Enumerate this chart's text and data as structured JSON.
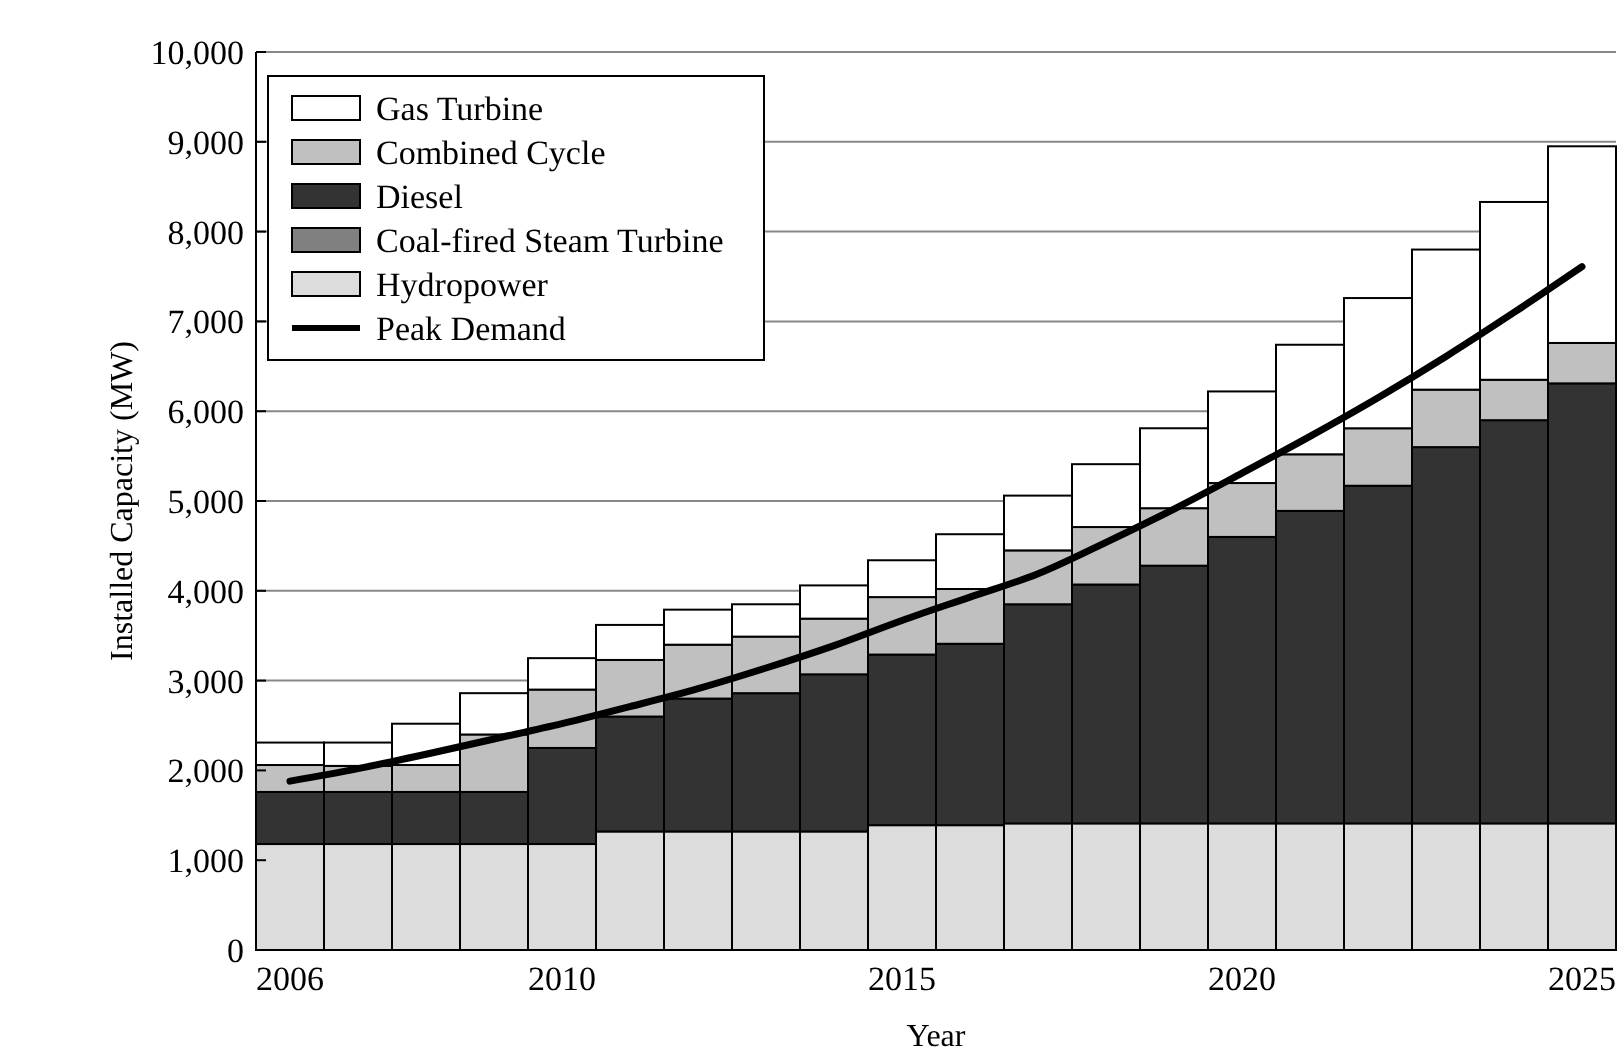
{
  "chart_data": {
    "type": "bar",
    "stacked": true,
    "xlabel": "Year",
    "ylabel": "Installed Capacity (MW)",
    "x": [
      2006,
      2007,
      2008,
      2009,
      2010,
      2011,
      2012,
      2013,
      2014,
      2015,
      2016,
      2017,
      2018,
      2019,
      2020,
      2021,
      2022,
      2023,
      2024,
      2025
    ],
    "xlim": [
      2005.5,
      2025.5
    ],
    "xticks": [
      2006,
      2010,
      2015,
      2020,
      2025
    ],
    "ylim": [
      0,
      10000
    ],
    "yticks": [
      0,
      {
        "value": 1000,
        "label": "1,000"
      },
      {
        "value": 2000,
        "label": "2,000"
      },
      {
        "value": 3000,
        "label": "3,000"
      },
      {
        "value": 4000,
        "label": "4,000"
      },
      {
        "value": 5000,
        "label": "5,000"
      },
      {
        "value": 6000,
        "label": "6,000"
      },
      {
        "value": 7000,
        "label": "7,000"
      },
      {
        "value": 8000,
        "label": "8,000"
      },
      {
        "value": 9000,
        "label": "9,000"
      },
      {
        "value": 10000,
        "label": "10,000"
      }
    ],
    "grid": "y",
    "legend": "top left",
    "series": [
      {
        "name": "Hydropower",
        "color": "#dcdcdc",
        "values": [
          1180,
          1180,
          1180,
          1180,
          1180,
          1320,
          1320,
          1320,
          1320,
          1390,
          1390,
          1410,
          1410,
          1410,
          1410,
          1410,
          1410,
          1410,
          1410,
          1410
        ]
      },
      {
        "name": "Coal-fired Steam Turbine",
        "color": "#808080",
        "values": [
          0,
          0,
          0,
          0,
          0,
          0,
          0,
          0,
          0,
          0,
          0,
          0,
          0,
          0,
          0,
          0,
          0,
          0,
          0,
          0
        ]
      },
      {
        "name": "Diesel",
        "color": "#333333",
        "values": [
          580,
          580,
          580,
          580,
          1070,
          1280,
          1480,
          1540,
          1750,
          1900,
          2020,
          2440,
          2660,
          2870,
          3190,
          3480,
          3760,
          4190,
          4490,
          4900
        ]
      },
      {
        "name": "Combined Cycle",
        "color": "#c0c0c0",
        "values": [
          300,
          290,
          300,
          640,
          650,
          630,
          600,
          630,
          620,
          640,
          610,
          600,
          640,
          640,
          600,
          630,
          640,
          640,
          450,
          450
        ]
      },
      {
        "name": "Gas Turbine",
        "color": "#ffffff",
        "values": [
          250,
          260,
          460,
          460,
          350,
          390,
          390,
          360,
          370,
          410,
          610,
          610,
          700,
          890,
          1020,
          1220,
          1450,
          1560,
          1980,
          2190
        ]
      },
      {
        "name": "Peak Demand",
        "type": "line",
        "color": "#000000",
        "line_style": "solid",
        "marker": "none",
        "values": [
          1880,
          2020,
          2180,
          2350,
          2520,
          2710,
          2910,
          3140,
          3390,
          3670,
          3930,
          4190,
          4540,
          4910,
          5310,
          5720,
          6150,
          6610,
          7100,
          7610
        ]
      }
    ]
  }
}
